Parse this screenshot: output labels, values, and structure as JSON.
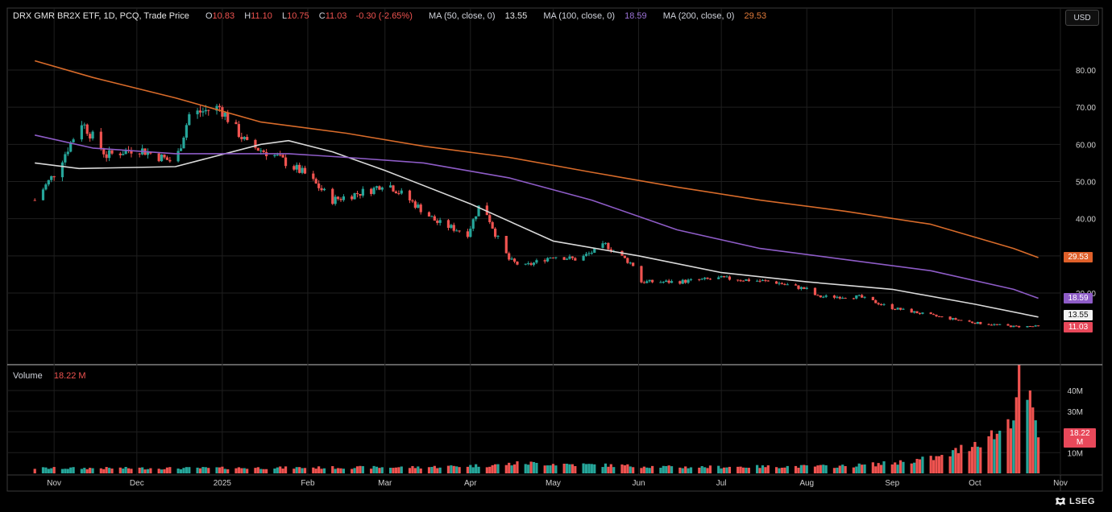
{
  "header": {
    "instrument": "DRX GMR BR2X ETF, 1D, PCQ, Trade Price",
    "o_label": "O",
    "o_value": "10.83",
    "h_label": "H",
    "h_value": "11.10",
    "l_label": "L",
    "l_value": "10.75",
    "c_label": "C",
    "c_value": "11.03",
    "change": "-0.30 (-2.65%)",
    "ma50_label": "MA (50, close, 0)",
    "ma50_value": "13.55",
    "ma100_label": "MA (100, close, 0)",
    "ma100_value": "18.59",
    "ma200_label": "MA (200, close, 0)",
    "ma200_value": "29.53"
  },
  "currency": "USD",
  "volume_label": "Volume",
  "volume_value": "18.22 M",
  "brand": "LSEG",
  "price_tags": {
    "ma200": "29.53",
    "ma100": "18.59",
    "ma50": "13.55",
    "last": "11.03",
    "volume": "18.22 M"
  },
  "colors": {
    "up": "#26a69a",
    "down": "#ef5350",
    "ma50": "#d9d9d9",
    "ma100": "#8e5cc7",
    "ma200": "#d86b2a",
    "background": "#000000",
    "grid": "#1f1f1f"
  },
  "chart_data": {
    "type": "candlestick",
    "price_axis_ticks": [
      "80.00",
      "70.00",
      "60.00",
      "50.00",
      "40.00",
      "20.00"
    ],
    "volume_axis_ticks": [
      "40M",
      "30M",
      "10M"
    ],
    "x_tick_labels": [
      "Nov",
      "Dec",
      "2025",
      "Feb",
      "Mar",
      "Apr",
      "May",
      "Jun",
      "Jul",
      "Aug",
      "Sep",
      "Oct",
      "Nov"
    ],
    "close_path": [
      {
        "date": "2024-10-25",
        "close": 45
      },
      {
        "date": "2024-11-01",
        "close": 52
      },
      {
        "date": "2024-11-11",
        "close": 66
      },
      {
        "date": "2024-11-20",
        "close": 57
      },
      {
        "date": "2024-12-01",
        "close": 59
      },
      {
        "date": "2024-12-15",
        "close": 55
      },
      {
        "date": "2024-12-20",
        "close": 68
      },
      {
        "date": "2024-12-31",
        "close": 70
      },
      {
        "date": "2025-01-10",
        "close": 60
      },
      {
        "date": "2025-01-20",
        "close": 57
      },
      {
        "date": "2025-01-31",
        "close": 52
      },
      {
        "date": "2025-02-10",
        "close": 45
      },
      {
        "date": "2025-02-25",
        "close": 48
      },
      {
        "date": "2025-03-01",
        "close": 50
      },
      {
        "date": "2025-03-10",
        "close": 45
      },
      {
        "date": "2025-03-20",
        "close": 39
      },
      {
        "date": "2025-03-31",
        "close": 36
      },
      {
        "date": "2025-04-05",
        "close": 45
      },
      {
        "date": "2025-04-10",
        "close": 36
      },
      {
        "date": "2025-04-15",
        "close": 29
      },
      {
        "date": "2025-04-20",
        "close": 27
      },
      {
        "date": "2025-05-01",
        "close": 30
      },
      {
        "date": "2025-05-10",
        "close": 29
      },
      {
        "date": "2025-05-20",
        "close": 33
      },
      {
        "date": "2025-05-31",
        "close": 27
      },
      {
        "date": "2025-06-01",
        "close": 23
      },
      {
        "date": "2025-06-15",
        "close": 23
      },
      {
        "date": "2025-07-01",
        "close": 24
      },
      {
        "date": "2025-07-20",
        "close": 23
      },
      {
        "date": "2025-08-01",
        "close": 21
      },
      {
        "date": "2025-08-05",
        "close": 19
      },
      {
        "date": "2025-08-20",
        "close": 19
      },
      {
        "date": "2025-09-01",
        "close": 16
      },
      {
        "date": "2025-09-15",
        "close": 14
      },
      {
        "date": "2025-10-01",
        "close": 12
      },
      {
        "date": "2025-10-15",
        "close": 11
      },
      {
        "date": "2025-10-24",
        "close": 11.03
      }
    ],
    "moving_averages": [
      {
        "name": "MA (50, close, 0)",
        "last": 13.55,
        "path": [
          {
            "date": "2024-10-25",
            "v": 55
          },
          {
            "date": "2024-11-10",
            "v": 53.5
          },
          {
            "date": "2024-12-15",
            "v": 54
          },
          {
            "date": "2025-01-15",
            "v": 60
          },
          {
            "date": "2025-01-25",
            "v": 61
          },
          {
            "date": "2025-02-10",
            "v": 58
          },
          {
            "date": "2025-03-01",
            "v": 53
          },
          {
            "date": "2025-04-01",
            "v": 44
          },
          {
            "date": "2025-05-01",
            "v": 34
          },
          {
            "date": "2025-06-01",
            "v": 30
          },
          {
            "date": "2025-07-01",
            "v": 25.5
          },
          {
            "date": "2025-08-01",
            "v": 23
          },
          {
            "date": "2025-09-01",
            "v": 21
          },
          {
            "date": "2025-10-01",
            "v": 17
          },
          {
            "date": "2025-10-24",
            "v": 13.55
          }
        ]
      },
      {
        "name": "MA (100, close, 0)",
        "last": 18.59,
        "path": [
          {
            "date": "2024-10-25",
            "v": 62.5
          },
          {
            "date": "2024-11-15",
            "v": 59
          },
          {
            "date": "2024-12-15",
            "v": 57.5
          },
          {
            "date": "2025-01-25",
            "v": 57.5
          },
          {
            "date": "2025-02-15",
            "v": 56.5
          },
          {
            "date": "2025-03-15",
            "v": 55
          },
          {
            "date": "2025-04-15",
            "v": 51
          },
          {
            "date": "2025-05-15",
            "v": 45
          },
          {
            "date": "2025-06-15",
            "v": 37
          },
          {
            "date": "2025-07-15",
            "v": 32
          },
          {
            "date": "2025-08-15",
            "v": 29
          },
          {
            "date": "2025-09-15",
            "v": 26
          },
          {
            "date": "2025-10-15",
            "v": 21
          },
          {
            "date": "2025-10-24",
            "v": 18.59
          }
        ]
      },
      {
        "name": "MA (200, close, 0)",
        "last": 29.53,
        "path": [
          {
            "date": "2024-10-25",
            "v": 82.5
          },
          {
            "date": "2024-11-15",
            "v": 78
          },
          {
            "date": "2024-12-15",
            "v": 72.5
          },
          {
            "date": "2025-01-15",
            "v": 66
          },
          {
            "date": "2025-02-15",
            "v": 63
          },
          {
            "date": "2025-03-15",
            "v": 59.5
          },
          {
            "date": "2025-04-15",
            "v": 56.5
          },
          {
            "date": "2025-05-15",
            "v": 52.5
          },
          {
            "date": "2025-06-15",
            "v": 48.5
          },
          {
            "date": "2025-07-15",
            "v": 45
          },
          {
            "date": "2025-08-15",
            "v": 42
          },
          {
            "date": "2025-09-15",
            "v": 38.5
          },
          {
            "date": "2025-10-15",
            "v": 32
          },
          {
            "date": "2025-10-24",
            "v": 29.53
          }
        ]
      }
    ],
    "volume_path": [
      {
        "date": "2024-10-25",
        "v": 2.5
      },
      {
        "date": "2024-12-15",
        "v": 2.5
      },
      {
        "date": "2025-03-15",
        "v": 3
      },
      {
        "date": "2025-04-10",
        "v": 4
      },
      {
        "date": "2025-04-20",
        "v": 5
      },
      {
        "date": "2025-06-15",
        "v": 3
      },
      {
        "date": "2025-08-15",
        "v": 3.5
      },
      {
        "date": "2025-09-01",
        "v": 5
      },
      {
        "date": "2025-09-20",
        "v": 8
      },
      {
        "date": "2025-10-01",
        "v": 15
      },
      {
        "date": "2025-10-10",
        "v": 20
      },
      {
        "date": "2025-10-15",
        "v": 30
      },
      {
        "date": "2025-10-17",
        "v": 43
      },
      {
        "date": "2025-10-20",
        "v": 38
      },
      {
        "date": "2025-10-22",
        "v": 28
      },
      {
        "date": "2025-10-24",
        "v": 18.22
      }
    ]
  }
}
